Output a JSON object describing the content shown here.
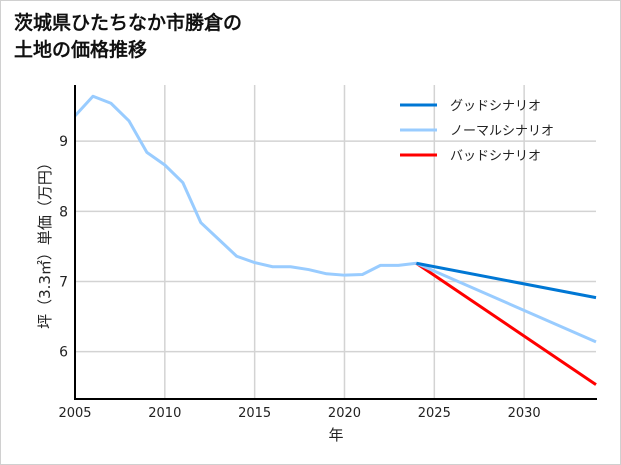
{
  "chart_data": {
    "type": "line",
    "title_lines": [
      "茨城県ひたちなか市勝倉の",
      "土地の価格推移"
    ],
    "xlabel": "年",
    "ylabel": "坪（3.3㎡）単価（万円）",
    "xlim": [
      2005,
      2034
    ],
    "ylim": [
      5.34,
      9.8
    ],
    "xticks": [
      2005,
      2010,
      2015,
      2020,
      2025,
      2030
    ],
    "yticks": [
      6,
      7,
      8,
      9
    ],
    "grid": true,
    "legend_position": "top-right",
    "historical": {
      "color": "#99ccff",
      "x": [
        2005,
        2006,
        2007,
        2008,
        2009,
        2010,
        2011,
        2012,
        2013,
        2014,
        2015,
        2016,
        2017,
        2018,
        2019,
        2020,
        2021,
        2022,
        2023,
        2024
      ],
      "y": [
        9.36,
        9.64,
        9.54,
        9.29,
        8.84,
        8.66,
        8.41,
        7.84,
        7.6,
        7.36,
        7.27,
        7.21,
        7.21,
        7.17,
        7.11,
        7.09,
        7.1,
        7.23,
        7.23,
        7.26
      ]
    },
    "series": [
      {
        "name": "グッドシナリオ",
        "color": "#0077d4",
        "x": [
          2024,
          2034
        ],
        "y": [
          7.26,
          6.77
        ]
      },
      {
        "name": "ノーマルシナリオ",
        "color": "#99ccff",
        "x": [
          2024,
          2034
        ],
        "y": [
          7.26,
          6.14
        ]
      },
      {
        "name": "バッドシナリオ",
        "color": "#ff0000",
        "x": [
          2024,
          2034
        ],
        "y": [
          7.26,
          5.53
        ]
      }
    ]
  }
}
